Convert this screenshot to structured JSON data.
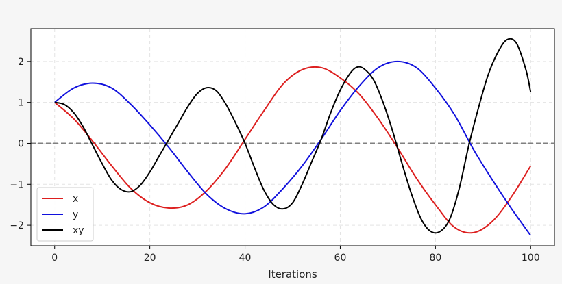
{
  "chart_data": {
    "type": "line",
    "title": "",
    "xlabel": "Iterations",
    "ylabel": "",
    "xlim": [
      -5,
      105
    ],
    "ylim": [
      -2.5,
      2.8
    ],
    "grid": true,
    "legend_position": "bottom-left",
    "x_ticks": [
      0,
      20,
      40,
      60,
      80,
      100
    ],
    "y_ticks": [
      -2,
      -1,
      0,
      1,
      2
    ],
    "x_tick_labels": [
      "0",
      "20",
      "40",
      "60",
      "80",
      "100"
    ],
    "y_tick_labels": [
      "−2",
      "−1",
      "0",
      "1",
      "2"
    ],
    "reference_line": {
      "y": 0,
      "style": "dashed",
      "color": "#808080"
    },
    "series": [
      {
        "name": "x",
        "color": "#dd1f1f",
        "x": [
          0,
          4,
          8,
          12,
          16,
          20,
          24,
          28,
          32,
          36,
          40,
          44,
          48,
          52,
          56,
          60,
          64,
          68,
          72,
          76,
          80,
          84,
          88,
          92,
          96,
          100
        ],
        "values": [
          1.0,
          0.6,
          0.05,
          -0.55,
          -1.1,
          -1.45,
          -1.58,
          -1.5,
          -1.15,
          -0.6,
          0.1,
          0.8,
          1.45,
          1.8,
          1.85,
          1.6,
          1.2,
          0.6,
          -0.1,
          -0.85,
          -1.5,
          -2.05,
          -2.18,
          -1.9,
          -1.3,
          -0.55
        ]
      },
      {
        "name": "y",
        "color": "#1111dd",
        "x": [
          0,
          4,
          8,
          12,
          16,
          20,
          24,
          28,
          32,
          36,
          40,
          44,
          48,
          52,
          56,
          60,
          64,
          68,
          72,
          76,
          80,
          84,
          88,
          92,
          96,
          100
        ],
        "values": [
          1.0,
          1.35,
          1.47,
          1.35,
          0.95,
          0.45,
          -0.1,
          -0.7,
          -1.25,
          -1.6,
          -1.72,
          -1.55,
          -1.1,
          -0.55,
          0.1,
          0.8,
          1.4,
          1.85,
          2.0,
          1.85,
          1.35,
          0.7,
          -0.15,
          -0.9,
          -1.6,
          -2.25
        ]
      },
      {
        "name": "xy",
        "color": "#000000",
        "x": [
          0,
          2,
          4,
          6,
          8,
          10,
          12,
          14,
          16,
          18,
          20,
          22,
          24,
          26,
          28,
          30,
          32,
          34,
          36,
          38,
          40,
          42,
          44,
          46,
          48,
          50,
          52,
          54,
          56,
          58,
          60,
          62,
          63.5,
          65,
          67,
          69,
          71,
          73,
          75,
          77,
          79,
          81,
          83,
          85,
          87,
          89,
          91,
          93,
          95,
          97,
          99,
          100
        ],
        "values": [
          1.0,
          0.95,
          0.75,
          0.4,
          -0.05,
          -0.5,
          -0.9,
          -1.13,
          -1.18,
          -1.02,
          -0.7,
          -0.3,
          0.1,
          0.5,
          0.9,
          1.22,
          1.36,
          1.28,
          0.95,
          0.5,
          0.0,
          -0.6,
          -1.15,
          -1.5,
          -1.6,
          -1.45,
          -1.0,
          -0.45,
          0.1,
          0.75,
          1.3,
          1.7,
          1.86,
          1.82,
          1.55,
          1.0,
          0.3,
          -0.5,
          -1.25,
          -1.85,
          -2.15,
          -2.15,
          -1.85,
          -1.1,
          -0.05,
          0.85,
          1.65,
          2.2,
          2.53,
          2.45,
          1.8,
          1.25
        ]
      }
    ]
  }
}
